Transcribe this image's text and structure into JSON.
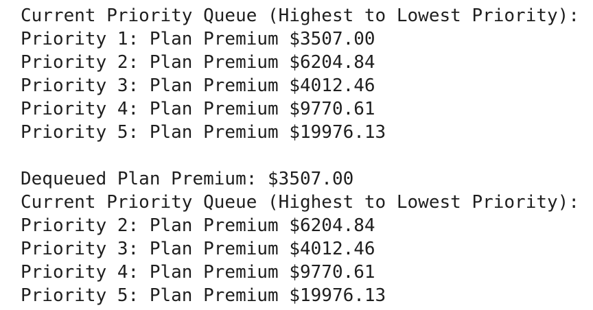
{
  "colors": {
    "background": "#ffffff",
    "text": "#1e1e1e"
  },
  "console": {
    "blocks": [
      {
        "name": "initial-priority-queue",
        "lines": [
          "Current Priority Queue (Highest to Lowest Priority):",
          "Priority 1: Plan Premium $3507.00",
          "Priority 2: Plan Premium $6204.84",
          "Priority 3: Plan Premium $4012.46",
          "Priority 4: Plan Premium $9770.61",
          "Priority 5: Plan Premium $19976.13"
        ]
      },
      {
        "name": "queue-after-dequeue",
        "lines": [
          "Dequeued Plan Premium: $3507.00",
          "Current Priority Queue (Highest to Lowest Priority):",
          "Priority 2: Plan Premium $6204.84",
          "Priority 3: Plan Premium $4012.46",
          "Priority 4: Plan Premium $9770.61",
          "Priority 5: Plan Premium $19976.13"
        ]
      }
    ]
  }
}
